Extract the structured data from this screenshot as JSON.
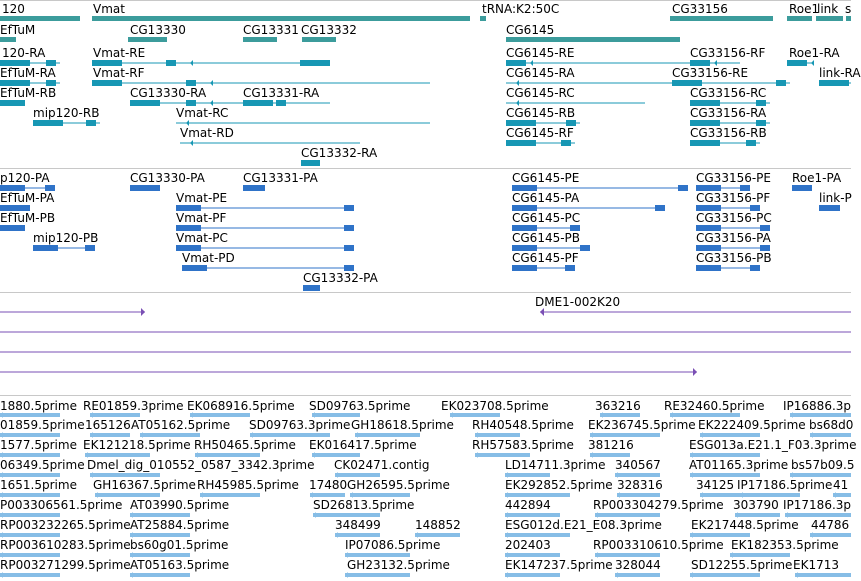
{
  "colors": {
    "gene": "#3c9c9c",
    "transcript_cds": "#1797b4",
    "transcript_utr": "#1797b4",
    "protein": "#2f73c8",
    "cdna": "#7a4fb4",
    "est": "#86bde6",
    "separator": "#c8c8c8"
  },
  "tracks": {
    "genes": [
      {
        "name": "120"
      },
      {
        "name": "Vmat"
      },
      {
        "name": "tRNA:K2:50C"
      },
      {
        "name": "CG33156"
      },
      {
        "name": "Roe1"
      },
      {
        "name": "link"
      },
      {
        "name": "s"
      },
      {
        "name": "EfTuM"
      },
      {
        "name": "CG13330"
      },
      {
        "name": "CG13331"
      },
      {
        "name": "CG13332"
      },
      {
        "name": "CG6145"
      }
    ],
    "transcripts": [
      {
        "name": "120-RA"
      },
      {
        "name": "Vmat-RE"
      },
      {
        "name": "CG6145-RE"
      },
      {
        "name": "CG33156-RF"
      },
      {
        "name": "Roe1-RA"
      },
      {
        "name": "EfTuM-RA"
      },
      {
        "name": "Vmat-RF"
      },
      {
        "name": "CG13330-RA"
      },
      {
        "name": "CG6145-RA"
      },
      {
        "name": "CG33156-RE"
      },
      {
        "name": "link-RA"
      },
      {
        "name": "EfTuM-RB"
      },
      {
        "name": "CG13331-RA"
      },
      {
        "name": "CG6145-RC"
      },
      {
        "name": "CG33156-RC"
      },
      {
        "name": "mip120-RB"
      },
      {
        "name": "Vmat-RC"
      },
      {
        "name": "CG6145-RB"
      },
      {
        "name": "CG33156-RA"
      },
      {
        "name": "Vmat-RD"
      },
      {
        "name": "CG6145-RF"
      },
      {
        "name": "CG33156-RB"
      },
      {
        "name": "CG13332-RA"
      }
    ],
    "proteins": [
      {
        "name": "p120-PA"
      },
      {
        "name": "CG13330-PA"
      },
      {
        "name": "CG13331-PA"
      },
      {
        "name": "CG6145-PE"
      },
      {
        "name": "CG33156-PE"
      },
      {
        "name": "Roe1-PA"
      },
      {
        "name": "EfTuM-PA"
      },
      {
        "name": "Vmat-PE"
      },
      {
        "name": "CG6145-PA"
      },
      {
        "name": "CG33156-PF"
      },
      {
        "name": "link-P"
      },
      {
        "name": "EfTuM-PB"
      },
      {
        "name": "Vmat-PF"
      },
      {
        "name": "CG6145-PC"
      },
      {
        "name": "CG33156-PC"
      },
      {
        "name": "mip120-PB"
      },
      {
        "name": "Vmat-PC"
      },
      {
        "name": "CG6145-PB"
      },
      {
        "name": "CG33156-PA"
      },
      {
        "name": "Vmat-PD"
      },
      {
        "name": "CG6145-PF"
      },
      {
        "name": "CG33156-PB"
      },
      {
        "name": "CG13332-PA"
      }
    ],
    "cdna": [
      {
        "name": "DME1-002K20"
      }
    ],
    "ests": [
      {
        "name": "1880.5prime"
      },
      {
        "name": "RE01859.3prime"
      },
      {
        "name": "EK068916.5prime"
      },
      {
        "name": "SD09763.5prime"
      },
      {
        "name": "EK023708.5prime"
      },
      {
        "name": "363216"
      },
      {
        "name": "RE32460.5prime"
      },
      {
        "name": "IP16886.3p"
      },
      {
        "name": "01859.5prime"
      },
      {
        "name": "165126"
      },
      {
        "name": "AT05162.5prime"
      },
      {
        "name": "SD09763.3prime"
      },
      {
        "name": "GH18618.5prime"
      },
      {
        "name": "RH40548.5prime"
      },
      {
        "name": "EK236745.5prime"
      },
      {
        "name": "EK222409.5prime"
      },
      {
        "name": "bs68d0"
      },
      {
        "name": "1577.5prime"
      },
      {
        "name": "EK121218.5prime"
      },
      {
        "name": "RH50465.5prime"
      },
      {
        "name": "EK016417.5prime"
      },
      {
        "name": "RH57583.5prime"
      },
      {
        "name": "381216"
      },
      {
        "name": "ESG013a.E21.1_F03.3prime"
      },
      {
        "name": "06349.5prime"
      },
      {
        "name": "Dmel_dig_010552_0587_3342.3prime"
      },
      {
        "name": "CK02471.contig"
      },
      {
        "name": "LD14711.3prime"
      },
      {
        "name": "340567"
      },
      {
        "name": "AT01165.3prime"
      },
      {
        "name": "bs57b09.5"
      },
      {
        "name": "1651.5prime"
      },
      {
        "name": "GH16367.5prime"
      },
      {
        "name": "RH45985.5prime"
      },
      {
        "name": "17480"
      },
      {
        "name": "GH26595.5prime"
      },
      {
        "name": "EK292852.5prime"
      },
      {
        "name": "328316"
      },
      {
        "name": "34125"
      },
      {
        "name": "IP17186.5prime"
      },
      {
        "name": "41"
      },
      {
        "name": "P003306561.5prime"
      },
      {
        "name": "AT03990.5prime"
      },
      {
        "name": "SD26813.5prime"
      },
      {
        "name": "442894"
      },
      {
        "name": "RP003304279.5prime"
      },
      {
        "name": "303790"
      },
      {
        "name": "IP17186.3p"
      },
      {
        "name": "RP003232265.5prime"
      },
      {
        "name": "AT25884.5prime"
      },
      {
        "name": "348499"
      },
      {
        "name": "148852"
      },
      {
        "name": "ESG012d.E21_E08.3prime"
      },
      {
        "name": "EK217448.5prime"
      },
      {
        "name": "44786"
      },
      {
        "name": "RP003610283.5prime"
      },
      {
        "name": "bs60g01.5prime"
      },
      {
        "name": "IP07086.5prime"
      },
      {
        "name": "202403"
      },
      {
        "name": "RP003310610.5prime"
      },
      {
        "name": "EK182353.5prime"
      },
      {
        "name": "RP003271299.5prime"
      },
      {
        "name": "AT05163.5prime"
      },
      {
        "name": "GH23132.5prime"
      },
      {
        "name": "EK147237.5prime"
      },
      {
        "name": "328044"
      },
      {
        "name": "SD12255.5prime"
      },
      {
        "name": "EK1713"
      }
    ]
  }
}
